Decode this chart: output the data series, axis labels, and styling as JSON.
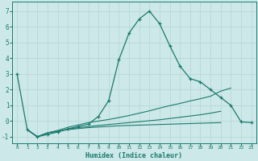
{
  "xlabel": "Humidex (Indice chaleur)",
  "background_color": "#cde8e8",
  "grid_color": "#b8d8d8",
  "line_color": "#1a7a6e",
  "xlim": [
    -0.5,
    23.5
  ],
  "ylim": [
    -1.4,
    7.6
  ],
  "xticks": [
    0,
    1,
    2,
    3,
    4,
    5,
    6,
    7,
    8,
    9,
    10,
    11,
    12,
    13,
    14,
    15,
    16,
    17,
    18,
    19,
    20,
    21,
    22,
    23
  ],
  "yticks": [
    -1,
    0,
    1,
    2,
    3,
    4,
    5,
    6,
    7
  ],
  "curve1_x": [
    0,
    1,
    2,
    3,
    4,
    5,
    6,
    7,
    8,
    9,
    10,
    11,
    12,
    13,
    14,
    15,
    16,
    17,
    18,
    19,
    20,
    21,
    22,
    23
  ],
  "curve1_y": [
    3.0,
    -0.55,
    -1.0,
    -0.85,
    -0.7,
    -0.5,
    -0.35,
    -0.2,
    0.3,
    1.3,
    3.9,
    5.6,
    6.5,
    7.0,
    6.2,
    4.8,
    3.5,
    2.7,
    2.5,
    2.0,
    1.5,
    1.0,
    -0.05,
    -0.1
  ],
  "curve2_x": [
    1,
    2,
    3,
    4,
    5,
    6,
    7,
    8,
    9,
    10,
    11,
    12,
    13,
    14,
    15,
    16,
    17,
    18,
    19,
    20,
    21,
    22,
    23
  ],
  "curve2_y": [
    -0.55,
    -1.0,
    -0.75,
    -0.6,
    -0.4,
    -0.25,
    -0.1,
    0.0,
    0.1,
    0.22,
    0.35,
    0.5,
    0.65,
    0.82,
    0.98,
    1.12,
    1.28,
    1.42,
    1.58,
    1.9,
    2.1,
    null,
    null
  ],
  "curve3_x": [
    1,
    2,
    3,
    4,
    5,
    6,
    7,
    8,
    9,
    10,
    11,
    12,
    13,
    14,
    15,
    16,
    17,
    18,
    19,
    20,
    21,
    22,
    23
  ],
  "curve3_y": [
    -0.55,
    -1.0,
    -0.75,
    -0.65,
    -0.52,
    -0.42,
    -0.35,
    -0.28,
    -0.22,
    -0.16,
    -0.1,
    -0.04,
    0.02,
    0.08,
    0.16,
    0.24,
    0.32,
    0.4,
    0.5,
    0.62,
    null,
    null,
    null
  ],
  "curve4_x": [
    1,
    2,
    3,
    4,
    5,
    6,
    7,
    8,
    9,
    10,
    11,
    12,
    13,
    14,
    15,
    16,
    17,
    18,
    19,
    20,
    21,
    22,
    23
  ],
  "curve4_y": [
    -0.55,
    -1.0,
    -0.75,
    -0.65,
    -0.55,
    -0.48,
    -0.42,
    -0.38,
    -0.34,
    -0.3,
    -0.28,
    -0.26,
    -0.24,
    -0.22,
    -0.2,
    -0.18,
    -0.16,
    -0.14,
    -0.12,
    -0.1,
    null,
    null,
    null
  ]
}
